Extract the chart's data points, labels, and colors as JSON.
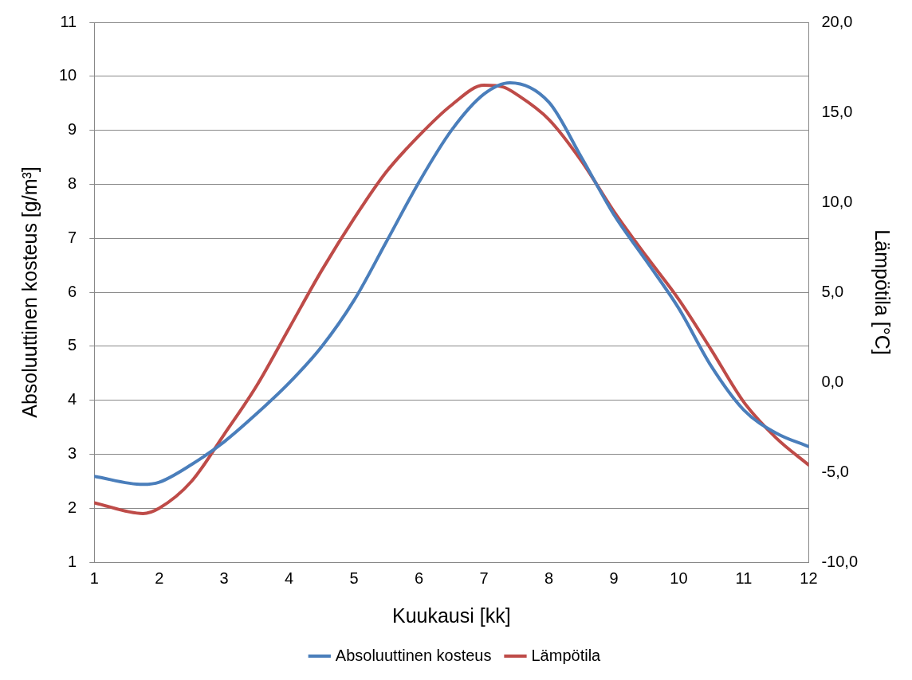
{
  "chart_data": {
    "type": "line",
    "xlabel": "Kuukausi [kk]",
    "ylabel": "Absoluuttinen kosteus [g/m³]",
    "y2label": "Lämpötila [°C]",
    "x": [
      1,
      1.75,
      2,
      2.5,
      3,
      3.5,
      4,
      4.5,
      5,
      5.5,
      6,
      6.5,
      7,
      7.4,
      8,
      8.5,
      9,
      9.5,
      10,
      10.5,
      11,
      11.5,
      12
    ],
    "series": [
      {
        "name": "Absoluuttinen kosteus",
        "color": "#4a7ebb",
        "values": [
          2.59,
          2.44,
          2.48,
          2.81,
          3.23,
          3.75,
          4.32,
          4.99,
          5.85,
          6.94,
          8.04,
          9.0,
          9.67,
          9.88,
          9.52,
          8.5,
          7.44,
          6.58,
          5.7,
          4.63,
          3.82,
          3.39,
          3.14
        ]
      },
      {
        "name": "Lämpötila",
        "color": "#be4b48",
        "axis": "y2",
        "x": [
          1,
          1.75,
          2,
          2.5,
          3,
          3.5,
          4,
          4.5,
          5,
          5.5,
          6,
          6.5,
          7,
          7.3,
          7.5,
          8,
          8.5,
          9,
          9.5,
          10,
          10.5,
          11,
          11.5,
          12
        ],
        "values": [
          -6.7,
          -7.3,
          -7.0,
          -5.5,
          -2.9,
          -0.2,
          3.0,
          6.2,
          9.1,
          11.7,
          13.7,
          15.4,
          16.5,
          16.4,
          16.0,
          14.6,
          12.3,
          9.5,
          7.0,
          4.6,
          1.8,
          -1.1,
          -3.1,
          -4.6
        ]
      }
    ],
    "xlim": [
      1,
      12
    ],
    "xticks": [
      1,
      2,
      3,
      4,
      5,
      6,
      7,
      8,
      9,
      10,
      11,
      12
    ],
    "ylim": [
      1,
      11
    ],
    "yticks": [
      1,
      2,
      3,
      4,
      5,
      6,
      7,
      8,
      9,
      10,
      11
    ],
    "y2lim": [
      -10,
      20
    ],
    "y2ticks": [
      {
        "value": -10,
        "label": "-10,0"
      },
      {
        "value": -5,
        "label": "-5,0"
      },
      {
        "value": 0,
        "label": "0,0"
      },
      {
        "value": 5,
        "label": "5,0"
      },
      {
        "value": 10,
        "label": "10,0"
      },
      {
        "value": 15,
        "label": "15,0"
      },
      {
        "value": 20,
        "label": "20,0"
      }
    ],
    "grid": "y",
    "legend": "bottom",
    "marker": "none",
    "line_style": "solid"
  }
}
